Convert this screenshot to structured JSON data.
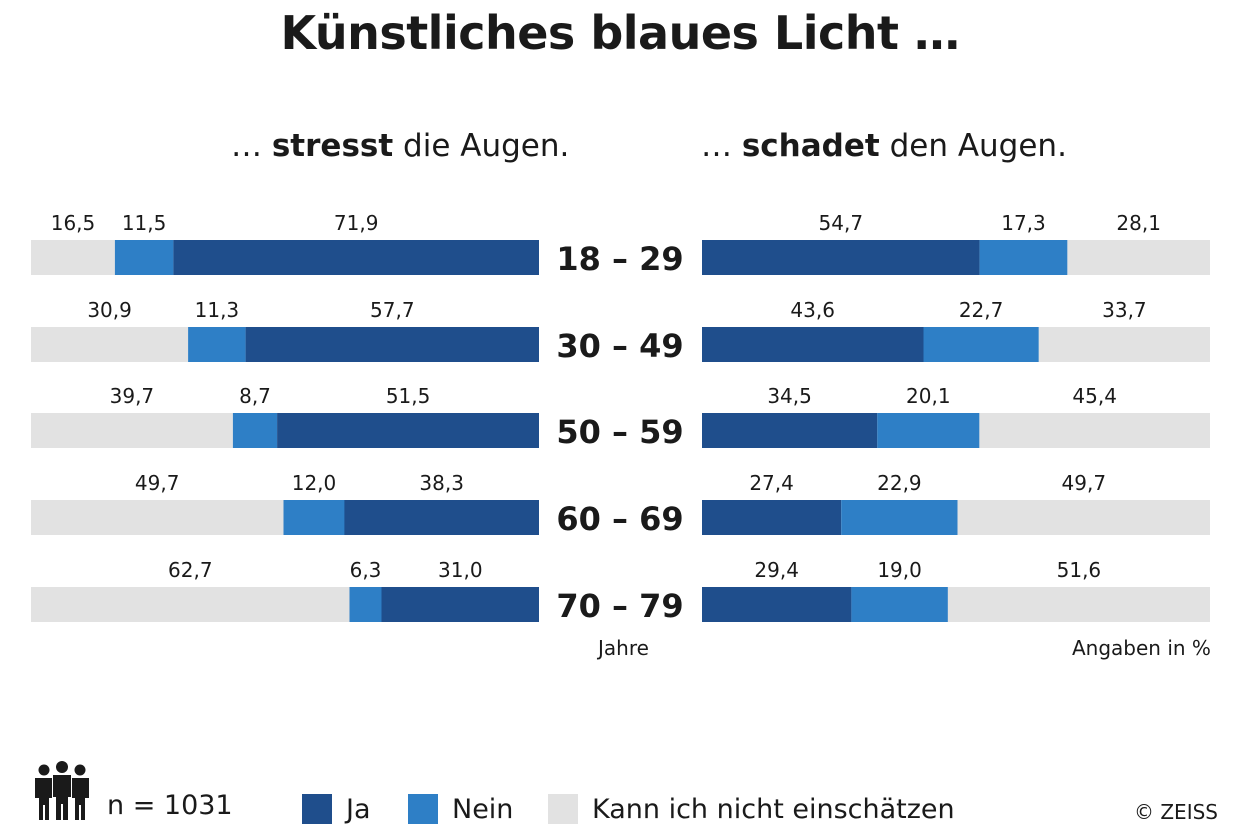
{
  "title": "Künstliches blaues Licht …",
  "subtitle_left": {
    "pre": "… ",
    "bold": "stresst",
    "post": " die Augen."
  },
  "subtitle_right": {
    "pre": "… ",
    "bold": "schadet",
    "post": " den Augen."
  },
  "unit_left": "Jahre",
  "unit_right": "Angaben in %",
  "sample": "n = 1031",
  "legend": [
    {
      "label": "Ja",
      "color": "#1f4e8c"
    },
    {
      "label": "Nein",
      "color": "#2e7fc6"
    },
    {
      "label": "Kann ich nicht einschätzen",
      "color": "#e2e2e2"
    }
  ],
  "copyright": "© ZEISS",
  "chart_data": [
    {
      "type": "bar",
      "stacked": true,
      "orientation": "horizontal",
      "title": "… stresst die Augen.",
      "categories": [
        "18 – 29",
        "30 – 49",
        "50 – 59",
        "60 – 69",
        "70 – 79"
      ],
      "series": [
        {
          "name": "Kann ich nicht einschätzen",
          "color": "#e2e2e2",
          "values": [
            16.5,
            30.9,
            39.7,
            49.7,
            62.7
          ],
          "labels": [
            "16,5",
            "30,9",
            "39,7",
            "49,7",
            "62,7"
          ]
        },
        {
          "name": "Nein",
          "color": "#2e7fc6",
          "values": [
            11.5,
            11.3,
            8.7,
            12.0,
            6.3
          ],
          "labels": [
            "11,5",
            "11,3",
            "8,7",
            "12,0",
            "6,3"
          ]
        },
        {
          "name": "Ja",
          "color": "#1f4e8c",
          "values": [
            71.9,
            57.7,
            51.5,
            38.3,
            31.0
          ],
          "labels": [
            "71,9",
            "57,7",
            "51,5",
            "38,3",
            "31,0"
          ]
        }
      ],
      "xlim": [
        0,
        100
      ]
    },
    {
      "type": "bar",
      "stacked": true,
      "orientation": "horizontal",
      "title": "… schadet den Augen.",
      "categories": [
        "18 – 29",
        "30 – 49",
        "50 – 59",
        "60 – 69",
        "70 – 79"
      ],
      "series": [
        {
          "name": "Ja",
          "color": "#1f4e8c",
          "values": [
            54.7,
            43.6,
            34.5,
            27.4,
            29.4
          ],
          "labels": [
            "54,7",
            "43,6",
            "34,5",
            "27,4",
            "29,4"
          ]
        },
        {
          "name": "Nein",
          "color": "#2e7fc6",
          "values": [
            17.3,
            22.7,
            20.1,
            22.9,
            19.0
          ],
          "labels": [
            "17,3",
            "22,7",
            "20,1",
            "22,9",
            "19,0"
          ]
        },
        {
          "name": "Kann ich nicht einschätzen",
          "color": "#e2e2e2",
          "values": [
            28.1,
            33.7,
            45.4,
            49.7,
            51.6
          ],
          "labels": [
            "28,1",
            "33,7",
            "45,4",
            "49,7",
            "51,6"
          ]
        }
      ],
      "xlim": [
        0,
        100
      ]
    }
  ]
}
